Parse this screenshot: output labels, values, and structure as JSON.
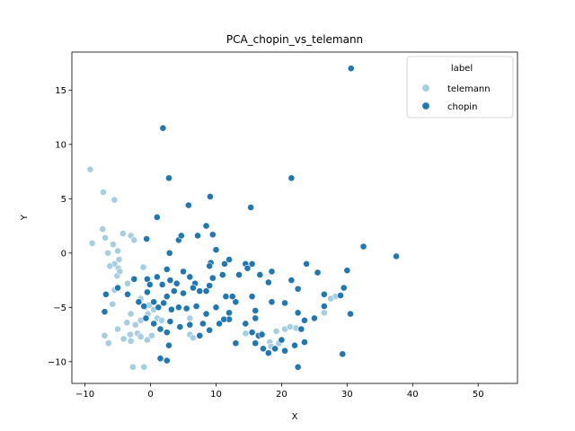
{
  "chart_data": {
    "type": "scatter",
    "title": "PCA_chopin_vs_telemann",
    "xlabel": "X",
    "ylabel": "Y",
    "xlim": [
      -12,
      56
    ],
    "ylim": [
      -12,
      18.5
    ],
    "xticks": [
      -10,
      0,
      10,
      20,
      30,
      40,
      50
    ],
    "yticks": [
      -10,
      -5,
      0,
      5,
      10,
      15
    ],
    "grid": false,
    "legend": {
      "title": "label",
      "position": "top-right"
    },
    "series": [
      {
        "name": "telemann",
        "color": "#a6cee3",
        "points": [
          [
            -9.2,
            7.7
          ],
          [
            -8.9,
            0.9
          ],
          [
            -7.2,
            5.6
          ],
          [
            -7.3,
            2.2
          ],
          [
            -6.9,
            1.4
          ],
          [
            -5.5,
            4.9
          ],
          [
            -6.5,
            0.0
          ],
          [
            -5.7,
            0.8
          ],
          [
            -5.0,
            0.2
          ],
          [
            -4.2,
            1.8
          ],
          [
            -3.0,
            1.6
          ],
          [
            -2.5,
            1.2
          ],
          [
            -4.8,
            -0.6
          ],
          [
            -5.5,
            -1.0
          ],
          [
            -4.9,
            -1.4
          ],
          [
            -6.2,
            -1.2
          ],
          [
            -5.1,
            -2.1
          ],
          [
            -4.7,
            -1.7
          ],
          [
            -5.5,
            -3.4
          ],
          [
            -3.5,
            -2.8
          ],
          [
            -1.1,
            -1.3
          ],
          [
            -1.5,
            -4.2
          ],
          [
            -0.8,
            -5.0
          ],
          [
            -0.2,
            -4.8
          ],
          [
            -3.0,
            -5.6
          ],
          [
            -2.3,
            -6.6
          ],
          [
            -1.5,
            -6.2
          ],
          [
            -3.1,
            -7.5
          ],
          [
            -2.0,
            -7.4
          ],
          [
            -1.5,
            -7.7
          ],
          [
            -0.5,
            -8.0
          ],
          [
            0.2,
            -7.6
          ],
          [
            -7.0,
            -7.6
          ],
          [
            -6.4,
            -8.3
          ],
          [
            -5.0,
            -7.0
          ],
          [
            -3.0,
            -8.1
          ],
          [
            -4.1,
            -7.9
          ],
          [
            -1.0,
            -10.5
          ],
          [
            -2.7,
            -10.5
          ],
          [
            1.0,
            -6.0
          ],
          [
            1.7,
            -6.2
          ],
          [
            -0.4,
            -5.6
          ],
          [
            0.5,
            -5.2
          ],
          [
            -3.6,
            -6.4
          ],
          [
            -5.8,
            -4.7
          ],
          [
            6.0,
            -7.5
          ],
          [
            6.5,
            -7.8
          ],
          [
            6.0,
            -6.0
          ],
          [
            14.5,
            -7.4
          ],
          [
            17.0,
            -7.4
          ],
          [
            18.2,
            -8.2
          ],
          [
            18.4,
            -8.6
          ],
          [
            19.2,
            -7.2
          ],
          [
            19.6,
            -8.3
          ],
          [
            20.5,
            -7.0
          ],
          [
            21.3,
            -6.8
          ],
          [
            22.2,
            -6.9
          ],
          [
            26.5,
            -5.5
          ],
          [
            28.2,
            -4.0
          ],
          [
            27.5,
            -4.2
          ]
        ]
      },
      {
        "name": "chopin",
        "color": "#1f78b4",
        "points": [
          [
            30.6,
            17.0
          ],
          [
            1.9,
            11.5
          ],
          [
            21.5,
            6.9
          ],
          [
            2.8,
            6.9
          ],
          [
            9.1,
            5.2
          ],
          [
            15.3,
            4.2
          ],
          [
            5.8,
            4.4
          ],
          [
            1.0,
            3.3
          ],
          [
            8.5,
            2.5
          ],
          [
            4.3,
            1.2
          ],
          [
            4.7,
            1.6
          ],
          [
            7.2,
            1.6
          ],
          [
            9.5,
            1.7
          ],
          [
            -0.6,
            1.3
          ],
          [
            2.9,
            0.0
          ],
          [
            10.0,
            0.3
          ],
          [
            32.5,
            0.6
          ],
          [
            37.5,
            -0.3
          ],
          [
            9.2,
            -0.9
          ],
          [
            12.0,
            -0.6
          ],
          [
            11.3,
            -1.0
          ],
          [
            14.5,
            -1.0
          ],
          [
            15.5,
            -1.0
          ],
          [
            14.8,
            -1.4
          ],
          [
            18.5,
            -1.7
          ],
          [
            23.8,
            -1.0
          ],
          [
            25.5,
            -1.8
          ],
          [
            30.0,
            -1.6
          ],
          [
            16.7,
            -2.0
          ],
          [
            13.5,
            -2.0
          ],
          [
            11.0,
            -2.0
          ],
          [
            9.5,
            -2.3
          ],
          [
            9.0,
            -1.2
          ],
          [
            2.5,
            -1.5
          ],
          [
            1.0,
            -2.2
          ],
          [
            1.8,
            -2.9
          ],
          [
            3.0,
            -2.5
          ],
          [
            4.0,
            -2.8
          ],
          [
            5.0,
            -1.7
          ],
          [
            6.0,
            -2.2
          ],
          [
            6.8,
            -2.8
          ],
          [
            3.6,
            -3.5
          ],
          [
            2.5,
            -4.0
          ],
          [
            5.0,
            -3.7
          ],
          [
            6.5,
            -3.2
          ],
          [
            7.5,
            -3.5
          ],
          [
            8.5,
            -3.5
          ],
          [
            9.0,
            -3.0
          ],
          [
            11.5,
            -4.0
          ],
          [
            13.0,
            -4.5
          ],
          [
            12.5,
            -4.0
          ],
          [
            15.5,
            -4.0
          ],
          [
            18.0,
            -2.7
          ],
          [
            21.5,
            -2.5
          ],
          [
            22.5,
            -3.3
          ],
          [
            26.5,
            -3.8
          ],
          [
            29.5,
            -3.2
          ],
          [
            -0.5,
            -2.4
          ],
          [
            -0.1,
            -2.9
          ],
          [
            0.5,
            -4.5
          ],
          [
            -2.5,
            -2.4
          ],
          [
            -3.5,
            -3.8
          ],
          [
            -5.0,
            -3.2
          ],
          [
            -6.8,
            -3.8
          ],
          [
            -7.0,
            -5.4
          ],
          [
            -1.8,
            -4.5
          ],
          [
            -1.0,
            -4.9
          ],
          [
            -0.5,
            -3.6
          ],
          [
            1.2,
            -5.0
          ],
          [
            2.0,
            -4.6
          ],
          [
            3.2,
            -5.2
          ],
          [
            4.3,
            -5.0
          ],
          [
            5.5,
            -5.1
          ],
          [
            7.0,
            -4.9
          ],
          [
            8.5,
            -5.6
          ],
          [
            10.0,
            -5.0
          ],
          [
            12.0,
            -5.5
          ],
          [
            12.0,
            -6.1
          ],
          [
            14.5,
            -6.5
          ],
          [
            16.0,
            -5.3
          ],
          [
            16.0,
            -6.0
          ],
          [
            18.5,
            -4.5
          ],
          [
            20.5,
            -4.6
          ],
          [
            22.5,
            -5.5
          ],
          [
            23.5,
            -6.2
          ],
          [
            25.0,
            -6.0
          ],
          [
            26.5,
            -4.9
          ],
          [
            29.0,
            -3.9
          ],
          [
            30.5,
            -5.6
          ],
          [
            -0.7,
            -6.0
          ],
          [
            0.5,
            -6.5
          ],
          [
            1.5,
            -7.0
          ],
          [
            2.5,
            -7.3
          ],
          [
            3.0,
            -6.3
          ],
          [
            4.5,
            -6.8
          ],
          [
            6.0,
            -6.6
          ],
          [
            7.5,
            -7.6
          ],
          [
            8.0,
            -6.5
          ],
          [
            9.0,
            -7.1
          ],
          [
            10.5,
            -6.5
          ],
          [
            11.2,
            -6.1
          ],
          [
            13.0,
            -8.3
          ],
          [
            15.5,
            -7.3
          ],
          [
            16.0,
            -8.3
          ],
          [
            16.5,
            -7.6
          ],
          [
            17.0,
            -7.5
          ],
          [
            18.0,
            -9.2
          ],
          [
            19.0,
            -8.8
          ],
          [
            20.0,
            -8.0
          ],
          [
            20.5,
            -9.0
          ],
          [
            22.0,
            -8.5
          ],
          [
            23.0,
            -7.0
          ],
          [
            23.5,
            -8.2
          ],
          [
            22.5,
            -10.5
          ],
          [
            1.5,
            -9.7
          ],
          [
            2.5,
            -9.9
          ],
          [
            2.8,
            -8.5
          ],
          [
            29.2,
            -9.3
          ],
          [
            29.3,
            -9.3
          ],
          [
            17.2,
            -8.8
          ]
        ]
      }
    ]
  }
}
